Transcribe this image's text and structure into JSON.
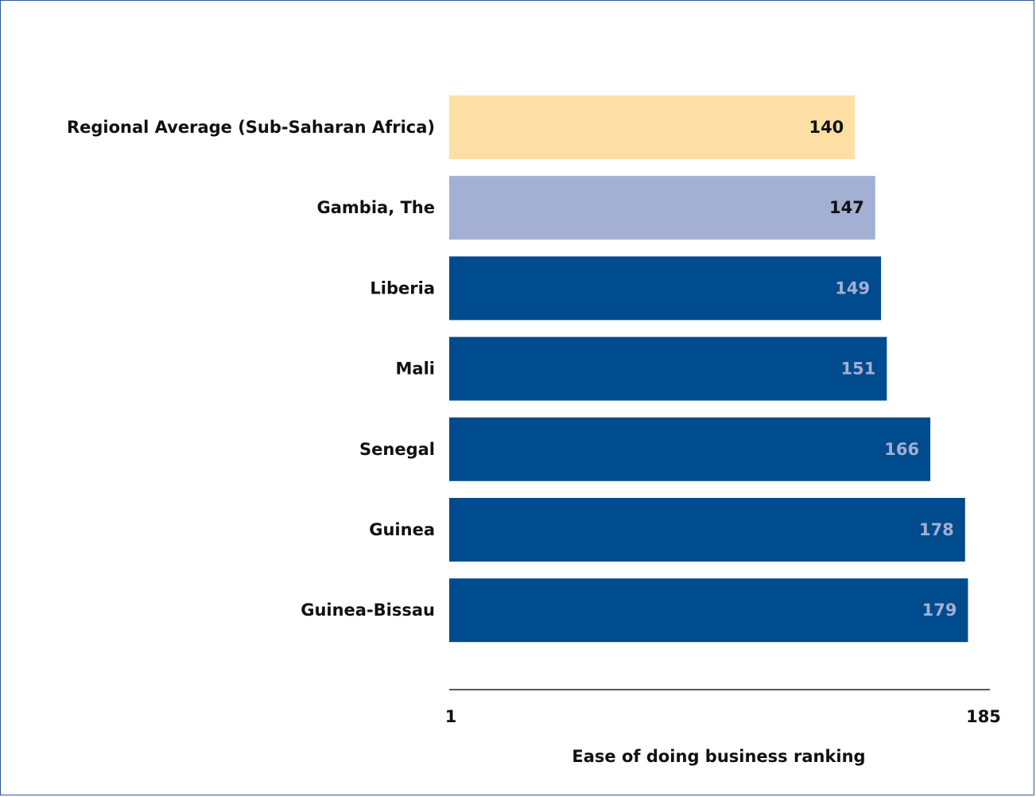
{
  "chart_data": {
    "type": "bar",
    "orientation": "horizontal",
    "categories": [
      "Regional Average (Sub-Saharan Africa)",
      "Gambia, The",
      "Liberia",
      "Mali",
      "Senegal",
      "Guinea",
      "Guinea-Bissau"
    ],
    "values": [
      140,
      147,
      149,
      151,
      166,
      178,
      179
    ],
    "bar_colors": [
      "#fddfa6",
      "#a3afd3",
      "#004b8d",
      "#004b8d",
      "#004b8d",
      "#004b8d",
      "#004b8d"
    ],
    "label_colors": [
      "#111111",
      "#111111",
      "#a3afd3",
      "#a3afd3",
      "#a3afd3",
      "#a3afd3",
      "#a3afd3"
    ],
    "xlim": [
      1,
      185
    ],
    "xticks": [
      "1",
      "185"
    ],
    "xlabel": "Ease of doing business ranking",
    "title": "",
    "grid": false
  }
}
